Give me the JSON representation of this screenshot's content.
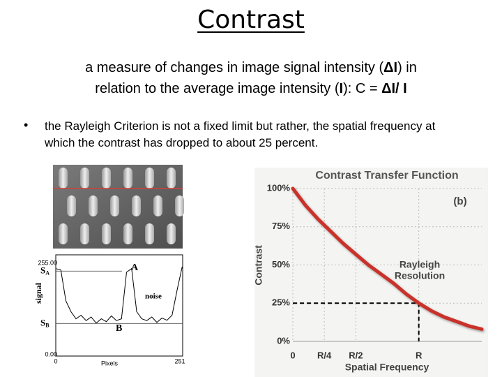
{
  "title": "Contrast",
  "definition": [
    [
      "a measure of changes in image signal intensity (",
      "ΔI",
      ") in"
    ],
    [
      "relation to the average image intensity (",
      "I",
      "): C = ",
      "ΔI/ I"
    ]
  ],
  "bullet": "the Rayleigh Criterion is not a fixed limit but rather, the spatial frequency at which the contrast has dropped to about 25 percent.",
  "signal_plot": {
    "type": "line",
    "y_axis_label": "signal",
    "x_axis_label": "Pixels",
    "xlim": [
      0,
      251
    ],
    "xticks": [
      0,
      251
    ],
    "ylim": [
      0,
      255
    ],
    "yticks": [
      {
        "value": 255,
        "label": "255.00"
      },
      {
        "value": 0,
        "label": "0.00"
      }
    ],
    "x": [
      0,
      10,
      20,
      30,
      40,
      50,
      60,
      70,
      80,
      90,
      100,
      110,
      120,
      130,
      140,
      150,
      160,
      170,
      180,
      190,
      200,
      210,
      220,
      230,
      240,
      250
    ],
    "values": [
      240,
      236,
      150,
      120,
      100,
      110,
      95,
      105,
      88,
      100,
      92,
      108,
      95,
      100,
      230,
      240,
      120,
      100,
      95,
      105,
      90,
      102,
      96,
      110,
      180,
      245
    ],
    "levels": [
      {
        "name": "S",
        "sub": "A",
        "value": 233
      },
      {
        "name": "S",
        "sub": "B",
        "value": 87
      }
    ],
    "annotations": [
      "A",
      "B",
      "noise"
    ]
  },
  "ctf_chart": {
    "type": "line",
    "title": "Contrast Transfer Function",
    "panel_label": "(b)",
    "y_axis_label": "Contrast",
    "x_axis_label": "Spatial Frequency",
    "xlim": [
      0,
      1.5
    ],
    "xticks": [
      0,
      {
        "value": 0.25,
        "label": "R/4"
      },
      {
        "value": 0.5,
        "label": "R/2"
      },
      {
        "value": 1,
        "label": "R"
      }
    ],
    "ylim": [
      0,
      100
    ],
    "yticks": [
      {
        "value": 0,
        "label": "0%"
      },
      {
        "value": 25,
        "label": "25%"
      },
      {
        "value": 50,
        "label": "50%"
      },
      {
        "value": 75,
        "label": "75%"
      },
      {
        "value": 100,
        "label": "100%"
      }
    ],
    "grid": true,
    "color": "#c8322a",
    "x": [
      0,
      0.1,
      0.2,
      0.3,
      0.4,
      0.5,
      0.6,
      0.7,
      0.8,
      0.9,
      1.0,
      1.1,
      1.2,
      1.3,
      1.4,
      1.5
    ],
    "values": [
      100,
      89,
      80,
      72,
      64,
      57,
      50,
      44,
      38,
      31,
      25,
      20,
      16,
      13,
      10,
      8
    ],
    "rayleigh": {
      "x": 1,
      "y": 25,
      "label": [
        "Rayleigh",
        "Resolution"
      ]
    }
  }
}
